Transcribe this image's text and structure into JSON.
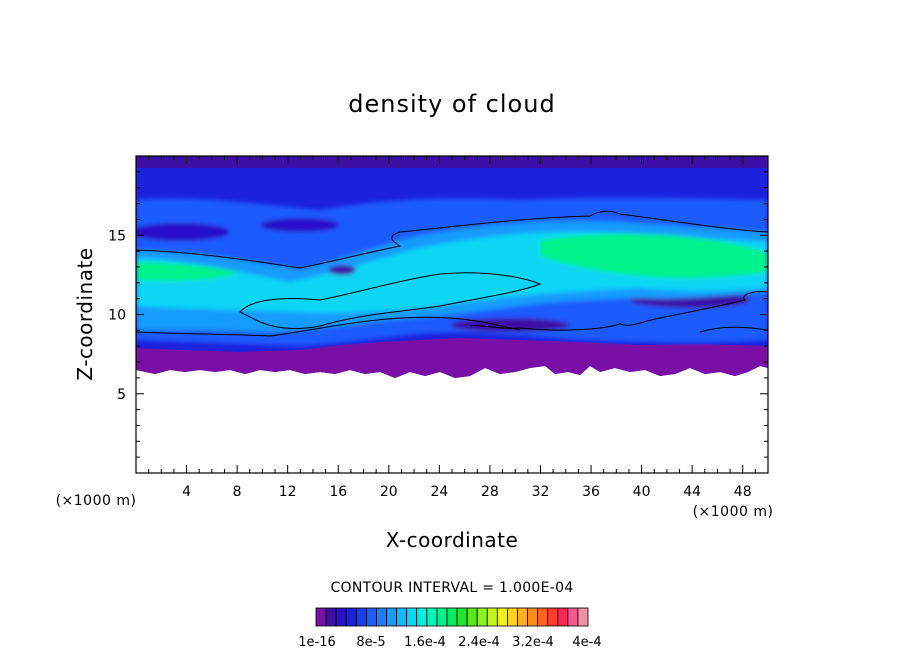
{
  "chart_data": {
    "type": "heatmap",
    "title": "density of cloud",
    "xlabel": "X-coordinate",
    "ylabel": "Z-coordinate",
    "x_unit": "(×1000 m)",
    "xlim": [
      0,
      50
    ],
    "ylim": [
      0,
      20
    ],
    "x_ticks": [
      4,
      8,
      12,
      16,
      20,
      24,
      28,
      32,
      36,
      40,
      44,
      48
    ],
    "y_ticks": [
      5,
      10,
      15
    ],
    "contour_interval": "CONTOUR INTERVAL = 1.000E-04",
    "colorbar": {
      "colors": [
        "#7a0fa6",
        "#3d0fa6",
        "#2a10c8",
        "#1c22dc",
        "#1a3ff0",
        "#1f5cff",
        "#1f7cff",
        "#179bff",
        "#10b8ff",
        "#0ad6f5",
        "#00f0e0",
        "#00f5b8",
        "#00f28a",
        "#00ee5a",
        "#22e62e",
        "#5ae61e",
        "#8ef01e",
        "#c4f51e",
        "#f0ee1e",
        "#ffd21e",
        "#ffae1e",
        "#ff8a1e",
        "#ff641e",
        "#ff3c2e",
        "#f52858",
        "#f25a8a",
        "#f08fa8"
      ],
      "labels": [
        "1e-16",
        "8e-5",
        "1.6e-4",
        "2.4e-4",
        "3.2e-4",
        "4e-4"
      ]
    },
    "grid": false,
    "legend": "colorbar below plot"
  }
}
